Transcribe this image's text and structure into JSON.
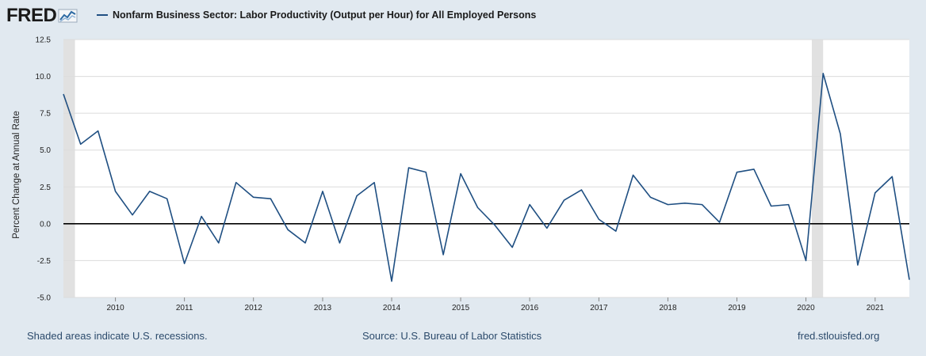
{
  "header": {
    "logo_text": "FRED",
    "logo_icon": "fred-chart-icon",
    "legend_label": "Nonfarm Business Sector: Labor Productivity (Output per Hour) for All Employed Persons"
  },
  "footer": {
    "recession_note": "Shaded areas indicate U.S. recessions.",
    "source": "Source: U.S. Bureau of Labor Statistics",
    "site": "fred.stlouisfed.org"
  },
  "colors": {
    "background": "#e1e9f0",
    "plot_background": "#ffffff",
    "series_line": "#1f4f82",
    "recession_shade": "#e1e1e1",
    "gridline": "#dcdcdc",
    "zero_line": "#000000"
  },
  "chart_data": {
    "type": "line",
    "title": "",
    "xlabel": "",
    "ylabel": "Percent Change at Annual Rate",
    "ylim": [
      -5.0,
      12.5
    ],
    "xlim": [
      "2009-04-01",
      "2021-07-01"
    ],
    "y_ticks": [
      "12.5",
      "10.0",
      "7.5",
      "5.0",
      "2.5",
      "0.0",
      "-2.5",
      "-5.0"
    ],
    "x_ticks": [
      "2010",
      "2011",
      "2012",
      "2013",
      "2014",
      "2015",
      "2016",
      "2017",
      "2018",
      "2019",
      "2020",
      "2021"
    ],
    "grid": true,
    "recessions": [
      {
        "start": "2009-04-01",
        "end": "2009-06-01"
      },
      {
        "start": "2020-02-01",
        "end": "2020-04-01"
      }
    ],
    "series": [
      {
        "name": "Nonfarm Business Sector: Labor Productivity (Output per Hour) for All Employed Persons",
        "x": [
          "2009-04-01",
          "2009-07-01",
          "2009-10-01",
          "2010-01-01",
          "2010-04-01",
          "2010-07-01",
          "2010-10-01",
          "2011-01-01",
          "2011-04-01",
          "2011-07-01",
          "2011-10-01",
          "2012-01-01",
          "2012-04-01",
          "2012-07-01",
          "2012-10-01",
          "2013-01-01",
          "2013-04-01",
          "2013-07-01",
          "2013-10-01",
          "2014-01-01",
          "2014-04-01",
          "2014-07-01",
          "2014-10-01",
          "2015-01-01",
          "2015-04-01",
          "2015-07-01",
          "2015-10-01",
          "2016-01-01",
          "2016-04-01",
          "2016-07-01",
          "2016-10-01",
          "2017-01-01",
          "2017-04-01",
          "2017-07-01",
          "2017-10-01",
          "2018-01-01",
          "2018-04-01",
          "2018-07-01",
          "2018-10-01",
          "2019-01-01",
          "2019-04-01",
          "2019-07-01",
          "2019-10-01",
          "2020-01-01",
          "2020-04-01",
          "2020-07-01",
          "2020-10-01",
          "2021-01-01",
          "2021-04-01",
          "2021-07-01"
        ],
        "values": [
          8.8,
          5.4,
          6.3,
          2.2,
          0.6,
          2.2,
          1.7,
          -2.7,
          0.5,
          -1.3,
          2.8,
          1.8,
          1.7,
          -0.4,
          -1.3,
          2.2,
          -1.3,
          1.9,
          2.8,
          -3.9,
          3.8,
          3.5,
          -2.1,
          3.4,
          1.1,
          -0.1,
          -1.6,
          1.3,
          -0.3,
          1.6,
          2.3,
          0.3,
          -0.5,
          3.3,
          1.8,
          1.3,
          1.4,
          1.3,
          0.1,
          3.5,
          3.7,
          1.2,
          1.3,
          -2.5,
          10.2,
          6.1,
          -2.8,
          2.1,
          3.2,
          -3.8
        ]
      }
    ]
  }
}
